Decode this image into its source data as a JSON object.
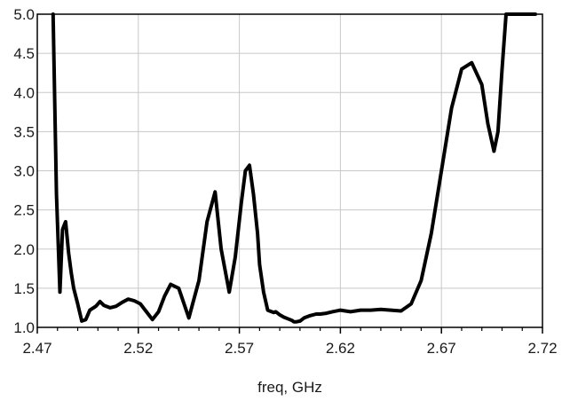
{
  "chart_data": {
    "type": "line",
    "title": "",
    "xlabel": "freq, GHz",
    "ylabel": "",
    "xlim": [
      2.47,
      2.72
    ],
    "ylim": [
      1.0,
      5.0
    ],
    "grid": true,
    "x_ticks": [
      "2.47",
      "2.52",
      "2.57",
      "2.62",
      "2.67",
      "2.72"
    ],
    "y_ticks": [
      "1.0",
      "1.5",
      "2.0",
      "2.5",
      "3.0",
      "3.5",
      "4.0",
      "4.5",
      "5.0"
    ],
    "line_color": "#000000",
    "grid_color": "#c8c8c8",
    "series": [
      {
        "x": [
          2.4778,
          2.4795,
          2.4812,
          2.4825,
          2.484,
          2.4855,
          2.4868,
          2.488,
          2.49,
          2.492,
          2.494,
          2.496,
          2.499,
          2.501,
          2.503,
          2.506,
          2.509,
          2.512,
          2.515,
          2.518,
          2.521,
          2.524,
          2.527,
          2.53,
          2.533,
          2.536,
          2.54,
          2.545,
          2.55,
          2.554,
          2.558,
          2.561,
          2.565,
          2.568,
          2.571,
          2.573,
          2.575,
          2.577,
          2.579,
          2.58,
          2.582,
          2.584,
          2.586,
          2.587,
          2.588,
          2.589,
          2.59,
          2.592,
          2.594,
          2.596,
          2.597,
          2.598,
          2.6,
          2.602,
          2.605,
          2.608,
          2.61,
          2.613,
          2.616,
          2.62,
          2.625,
          2.63,
          2.635,
          2.64,
          2.645,
          2.65,
          2.655,
          2.66,
          2.665,
          2.67,
          2.675,
          2.68,
          2.685,
          2.69,
          2.693,
          2.696,
          2.698,
          2.7,
          2.702,
          2.704,
          2.706,
          2.708,
          2.709,
          2.71,
          2.711,
          2.712,
          2.713,
          2.714,
          2.715,
          2.716,
          2.7165
        ],
        "y": [
          5.0,
          2.7,
          1.45,
          2.25,
          2.35,
          1.95,
          1.7,
          1.5,
          1.3,
          1.08,
          1.1,
          1.22,
          1.27,
          1.33,
          1.28,
          1.25,
          1.27,
          1.32,
          1.36,
          1.34,
          1.3,
          1.2,
          1.1,
          1.2,
          1.4,
          1.55,
          1.5,
          1.12,
          1.6,
          2.35,
          2.73,
          2.0,
          1.45,
          1.9,
          2.6,
          3.0,
          3.07,
          2.7,
          2.2,
          1.8,
          1.45,
          1.22,
          1.2,
          1.19,
          1.2,
          1.18,
          1.16,
          1.13,
          1.11,
          1.09,
          1.07,
          1.07,
          1.08,
          1.12,
          1.15,
          1.17,
          1.17,
          1.18,
          1.2,
          1.22,
          1.2,
          1.22,
          1.22,
          1.23,
          1.22,
          1.21,
          1.3,
          1.6,
          2.2,
          3.0,
          3.8,
          4.3,
          4.38,
          4.1,
          3.6,
          3.25,
          3.5,
          4.3,
          5.0,
          5.0,
          5.0,
          5.0,
          5.0,
          5.0,
          5.0,
          5.0,
          5.0,
          5.0,
          5.0,
          5.0,
          5.0
        ]
      }
    ]
  }
}
